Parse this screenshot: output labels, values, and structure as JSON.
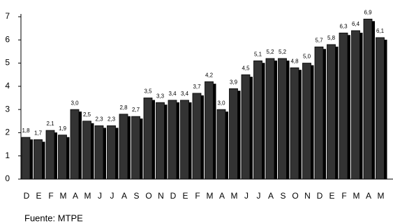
{
  "chart_data": {
    "type": "bar",
    "categories": [
      "D",
      "E",
      "F",
      "M",
      "A",
      "M",
      "J",
      "J",
      "A",
      "S",
      "O",
      "N",
      "D",
      "E",
      "F",
      "M",
      "A",
      "M",
      "J",
      "J",
      "A",
      "S",
      "O",
      "N",
      "D",
      "E",
      "F",
      "M",
      "A",
      "M"
    ],
    "values": [
      1.8,
      1.7,
      2.1,
      1.9,
      3.0,
      2.5,
      2.3,
      2.3,
      2.8,
      2.7,
      3.5,
      3.3,
      3.4,
      3.4,
      3.7,
      4.2,
      3.0,
      3.9,
      4.5,
      5.1,
      5.2,
      5.2,
      4.8,
      5.0,
      5.7,
      5.8,
      6.3,
      6.4,
      6.9,
      6.1
    ],
    "value_labels": [
      "1,8",
      "1,7",
      "2,1",
      "1,9",
      "3,0",
      "2,5",
      "2,3",
      "2,3",
      "2,8",
      "2,7",
      "3,5",
      "3,3",
      "3,4",
      "3,4",
      "3,7",
      "4,2",
      "3,0",
      "3,9",
      "4,5",
      "5,1",
      "5,2",
      "5,2",
      "4,8",
      "5,0",
      "5,7",
      "5,8",
      "6,3",
      "6,4",
      "6,9",
      "6,1"
    ],
    "color": "#333333",
    "ylim": [
      0,
      7
    ],
    "yticks": [
      0,
      1,
      2,
      3,
      4,
      5,
      6,
      7
    ],
    "source": "Fuente: MTPE"
  }
}
